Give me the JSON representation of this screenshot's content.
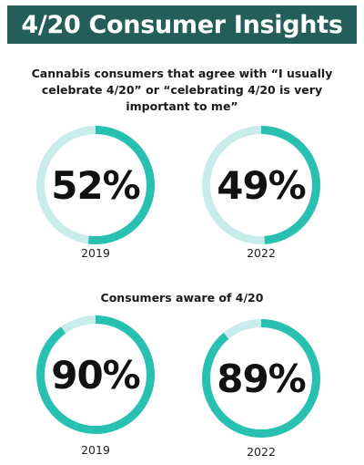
{
  "title": "4/20 Consumer Insights",
  "colors": {
    "title_bg": "#245e5b",
    "ring_fill": "#28c0b0",
    "ring_track": "#c8ecea"
  },
  "chart_data": [
    {
      "type": "pie",
      "title": "Cannabis consumers that agree with “I usually celebrate 4/20” or “celebrating 4/20 is very important to me”",
      "categories": [
        "2019",
        "2022"
      ],
      "values": [
        52,
        49
      ],
      "labels": [
        "52%",
        "49%"
      ],
      "unit": "%"
    },
    {
      "type": "pie",
      "title": "Consumers aware of 4/20",
      "categories": [
        "2019",
        "2022"
      ],
      "values": [
        90,
        89
      ],
      "labels": [
        "90%",
        "89%"
      ],
      "unit": "%"
    }
  ]
}
